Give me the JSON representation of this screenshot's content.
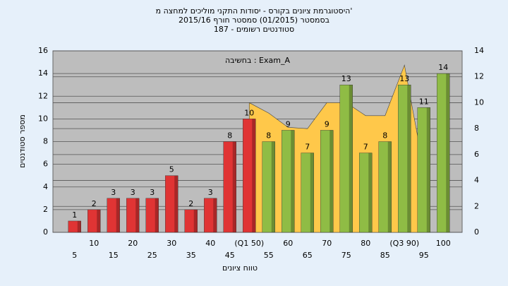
{
  "chart_data": {
    "type": "bar",
    "title_lines": [
      "היסטוגרמת ציונים בקורס - יסודות התקני מוליכים למחצה מ'",
      "בסמסטר (01/2015) סמסטר חורף 2015/16",
      "סטודנטים רשומים - 187"
    ],
    "annotation": "בחשיבה : Exam_A",
    "x_label": "טווח ציונים",
    "y_label": "מספר סטודנטים",
    "categories": [
      "5",
      "10",
      "15",
      "20",
      "25",
      "30",
      "35",
      "40",
      "45",
      "(Q1 50)",
      "55",
      "60",
      "65",
      "70",
      "75",
      "80",
      "85",
      "(Q3 90)",
      "95",
      "100"
    ],
    "values": [
      1,
      2,
      3,
      3,
      3,
      5,
      2,
      3,
      8,
      10,
      8,
      9,
      7,
      9,
      13,
      7,
      8,
      13,
      11,
      14
    ],
    "colors": [
      "#e03434",
      "#e03434",
      "#e03434",
      "#e03434",
      "#e03434",
      "#e03434",
      "#e03434",
      "#e03434",
      "#e03434",
      "#e03434",
      "#8fbc45",
      "#8fbc45",
      "#8fbc45",
      "#8fbc45",
      "#8fbc45",
      "#8fbc45",
      "#8fbc45",
      "#8fbc45",
      "#8fbc45",
      "#8fbc45"
    ],
    "area": {
      "color": "#ffc84a",
      "axis": "y2",
      "values": [
        null,
        null,
        null,
        null,
        null,
        null,
        null,
        null,
        null,
        10,
        9.2,
        8.1,
        8,
        10,
        10,
        9,
        9,
        12.9,
        4.8,
        null
      ]
    },
    "ylim": [
      0,
      16
    ],
    "yticks": [
      0,
      2,
      4,
      6,
      8,
      10,
      12,
      14,
      16
    ],
    "y2lim": [
      0,
      14
    ],
    "y2ticks": [
      0,
      2,
      4,
      6,
      8,
      10,
      12,
      14
    ],
    "grid": true
  }
}
